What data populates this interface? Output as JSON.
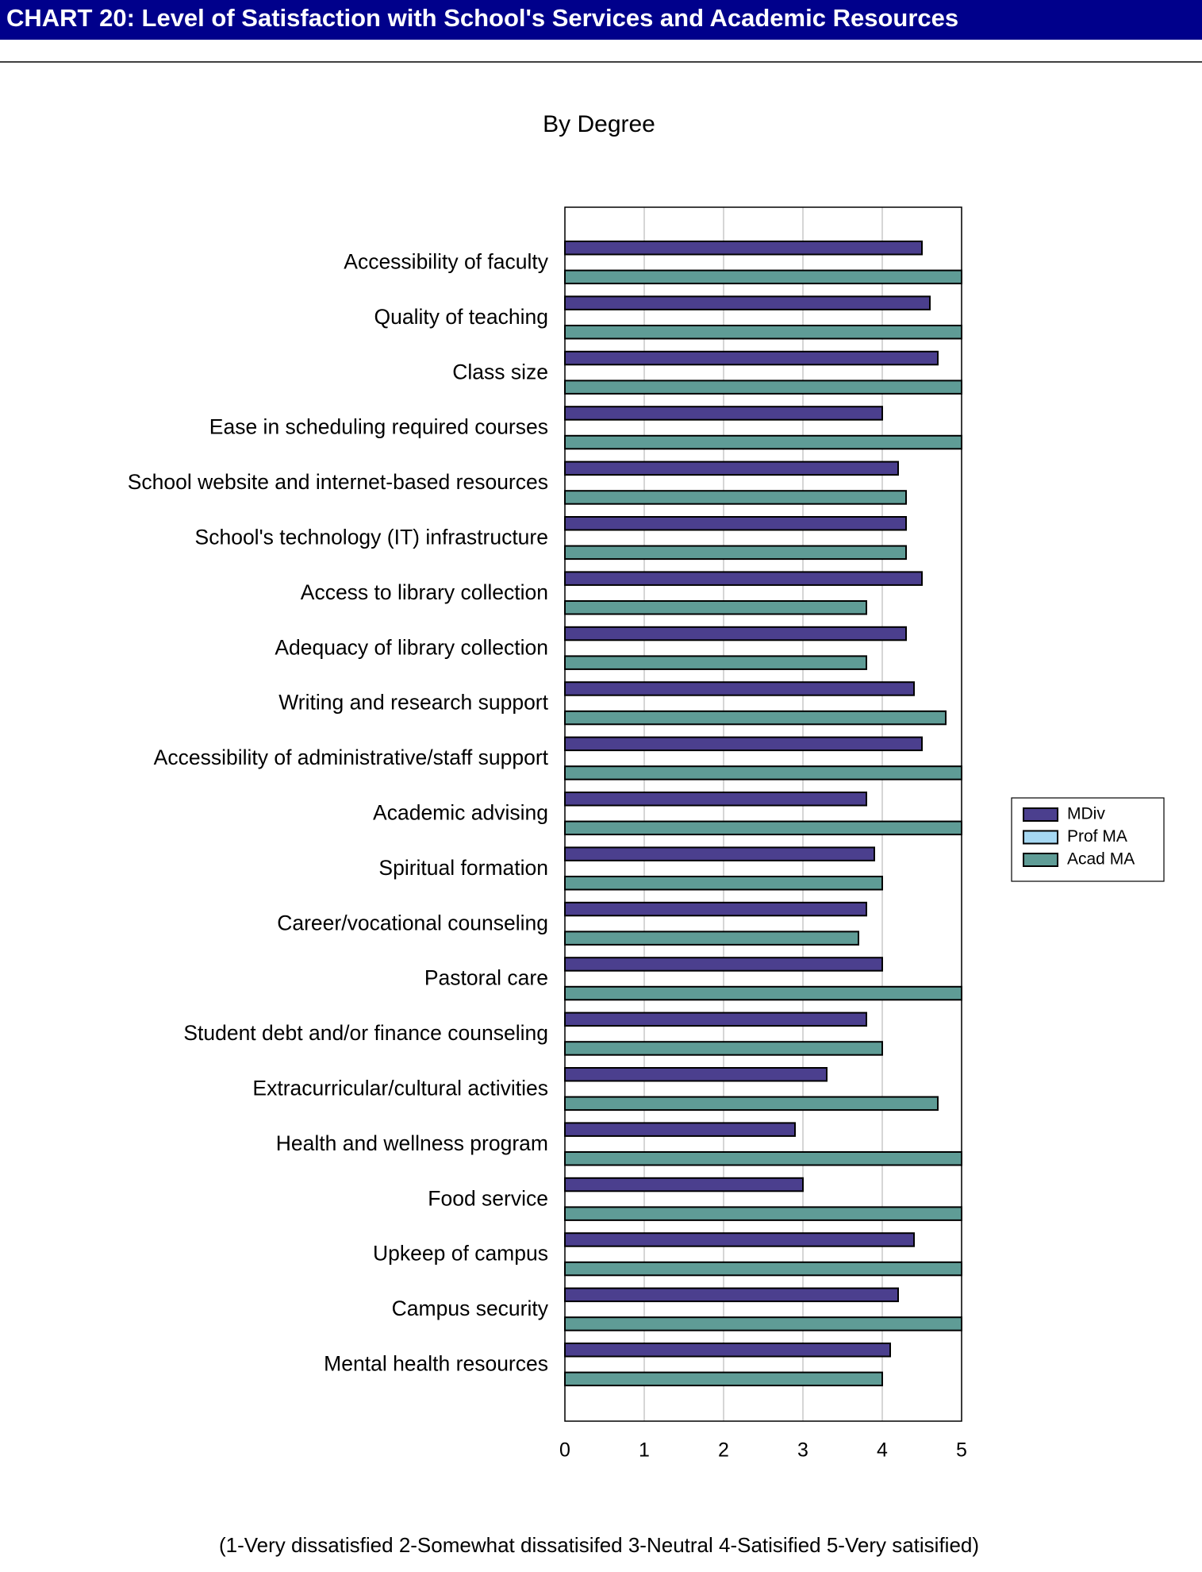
{
  "chart_data": {
    "type": "barh",
    "header": "CHART 20: Level of Satisfaction with School's Services and Academic Resources",
    "title": "By Degree",
    "note": "(1-Very dissatisfied  2-Somewhat dissatisifed  3-Neutral  4-Satisified  5-Very satisified)",
    "categories": [
      "Accessibility of faculty",
      "Quality of teaching",
      "Class size",
      "Ease in scheduling required courses",
      "School website and internet-based resources",
      "School's technology (IT) infrastructure",
      "Access to library collection",
      "Adequacy of library collection",
      "Writing and research support",
      "Accessibility of administrative/staff support",
      "Academic advising",
      "Spiritual formation",
      "Career/vocational counseling",
      "Pastoral care",
      "Student debt and/or finance counseling",
      "Extracurricular/cultural activities",
      "Health and wellness program",
      "Food service",
      "Upkeep of campus",
      "Campus security",
      "Mental health resources"
    ],
    "series": [
      {
        "name": "MDiv",
        "color": "#4b3f8e",
        "values": [
          4.5,
          4.6,
          4.7,
          4.0,
          4.2,
          4.3,
          4.5,
          4.3,
          4.4,
          4.5,
          3.8,
          3.9,
          3.8,
          4.0,
          3.8,
          3.3,
          2.9,
          3.0,
          4.4,
          4.2,
          4.1
        ]
      },
      {
        "name": "Prof MA",
        "color": "#a6d8f2",
        "values": [
          null,
          null,
          null,
          null,
          null,
          null,
          null,
          null,
          null,
          null,
          null,
          null,
          null,
          null,
          null,
          null,
          null,
          null,
          null,
          null,
          null
        ]
      },
      {
        "name": "Acad MA",
        "color": "#5f9c96",
        "values": [
          5,
          5,
          5,
          5,
          4.3,
          4.3,
          3.8,
          3.8,
          4.8,
          5,
          5,
          4.0,
          3.7,
          5,
          4.0,
          4.7,
          5,
          5,
          5,
          5,
          4.0
        ]
      }
    ],
    "xlim": [
      0,
      5
    ],
    "xticks": [
      0,
      1,
      2,
      3,
      4,
      5
    ],
    "grid": true,
    "legend": "right"
  }
}
